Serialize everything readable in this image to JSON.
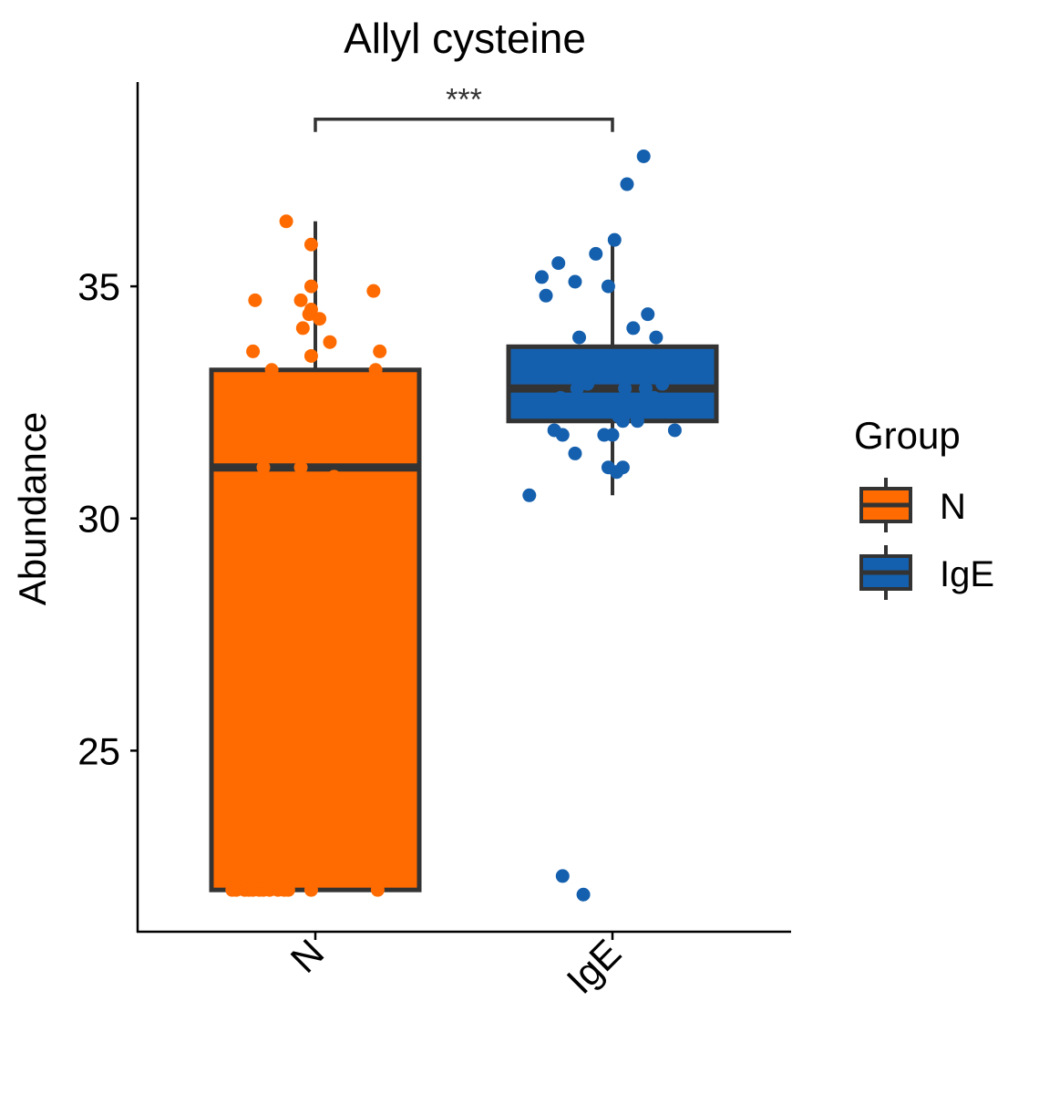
{
  "chart_data": {
    "type": "box",
    "title": "Allyl cysteine",
    "xlabel": "",
    "ylabel": "Abundance",
    "categories": [
      "N",
      "IgE"
    ],
    "ylim": [
      21.1,
      39.4
    ],
    "yticks": [
      25,
      30,
      35
    ],
    "grid": false,
    "legend": {
      "title": "Group",
      "placement": "right",
      "entries": [
        {
          "label": "N",
          "color": "#FF6B00"
        },
        {
          "label": "IgE",
          "color": "#1560AE"
        }
      ]
    },
    "significance": {
      "from": "N",
      "to": "IgE",
      "label": "***",
      "y": 38.6
    },
    "series": [
      {
        "name": "N",
        "color": "#FF6B00",
        "box": {
          "min": 22.0,
          "q1": 22.0,
          "median": 31.1,
          "q3": 33.2,
          "max": 36.4
        },
        "points": [
          {
            "x": -0.4,
            "y": 22.0
          },
          {
            "x": -0.38,
            "y": 22.0
          },
          {
            "x": -0.34,
            "y": 22.0
          },
          {
            "x": -0.32,
            "y": 22.0
          },
          {
            "x": -0.3,
            "y": 22.0
          },
          {
            "x": -0.27,
            "y": 22.0
          },
          {
            "x": -0.25,
            "y": 22.0
          },
          {
            "x": -0.22,
            "y": 22.0
          },
          {
            "x": -0.18,
            "y": 22.0
          },
          {
            "x": -0.15,
            "y": 22.0
          },
          {
            "x": -0.13,
            "y": 22.0
          },
          {
            "x": -0.02,
            "y": 22.0
          },
          {
            "x": 0.3,
            "y": 22.0
          },
          {
            "x": -0.4,
            "y": 30.7
          },
          {
            "x": -0.34,
            "y": 30.1
          },
          {
            "x": -0.36,
            "y": 31.4
          },
          {
            "x": -0.34,
            "y": 32.4
          },
          {
            "x": -0.25,
            "y": 31.1
          },
          {
            "x": -0.07,
            "y": 31.1
          },
          {
            "x": 0.09,
            "y": 30.9
          },
          {
            "x": -0.3,
            "y": 33.6
          },
          {
            "x": -0.21,
            "y": 33.2
          },
          {
            "x": -0.29,
            "y": 34.7
          },
          {
            "x": -0.07,
            "y": 34.7
          },
          {
            "x": -0.06,
            "y": 34.1
          },
          {
            "x": -0.03,
            "y": 34.4
          },
          {
            "x": -0.02,
            "y": 35.0
          },
          {
            "x": -0.02,
            "y": 34.5
          },
          {
            "x": 0.02,
            "y": 34.3
          },
          {
            "x": -0.02,
            "y": 33.5
          },
          {
            "x": 0.07,
            "y": 33.8
          },
          {
            "x": -0.02,
            "y": 35.9
          },
          {
            "x": -0.14,
            "y": 36.4
          },
          {
            "x": 0.28,
            "y": 34.9
          },
          {
            "x": 0.29,
            "y": 33.2
          },
          {
            "x": 0.31,
            "y": 33.6
          }
        ]
      },
      {
        "name": "IgE",
        "color": "#1560AE",
        "box": {
          "min": 30.5,
          "q1": 32.1,
          "median": 32.8,
          "q3": 33.7,
          "max": 36.0
        },
        "points": [
          {
            "x": -0.4,
            "y": 30.5
          },
          {
            "x": -0.24,
            "y": 22.3
          },
          {
            "x": -0.14,
            "y": 21.9
          },
          {
            "x": -0.34,
            "y": 35.2
          },
          {
            "x": -0.32,
            "y": 34.8
          },
          {
            "x": -0.26,
            "y": 35.5
          },
          {
            "x": -0.18,
            "y": 35.1
          },
          {
            "x": -0.16,
            "y": 33.9
          },
          {
            "x": -0.08,
            "y": 35.7
          },
          {
            "x": -0.02,
            "y": 35.0
          },
          {
            "x": 0.01,
            "y": 36.0
          },
          {
            "x": 0.07,
            "y": 37.2
          },
          {
            "x": 0.15,
            "y": 37.8
          },
          {
            "x": 0.1,
            "y": 34.1
          },
          {
            "x": 0.17,
            "y": 34.4
          },
          {
            "x": 0.21,
            "y": 33.9
          },
          {
            "x": -0.28,
            "y": 31.9
          },
          {
            "x": -0.24,
            "y": 31.8
          },
          {
            "x": -0.18,
            "y": 31.4
          },
          {
            "x": -0.04,
            "y": 31.8
          },
          {
            "x": 0.0,
            "y": 31.8
          },
          {
            "x": -0.02,
            "y": 31.1
          },
          {
            "x": 0.02,
            "y": 31.0
          },
          {
            "x": 0.05,
            "y": 31.1
          },
          {
            "x": 0.37,
            "y": 32.5
          },
          {
            "x": 0.3,
            "y": 31.9
          },
          {
            "x": -0.25,
            "y": 32.6
          },
          {
            "x": -0.17,
            "y": 32.8
          },
          {
            "x": -0.12,
            "y": 32.9
          },
          {
            "x": -0.05,
            "y": 32.4
          },
          {
            "x": 0.03,
            "y": 32.2
          },
          {
            "x": 0.06,
            "y": 32.8
          },
          {
            "x": 0.11,
            "y": 32.3
          },
          {
            "x": 0.16,
            "y": 32.8
          },
          {
            "x": 0.2,
            "y": 32.6
          },
          {
            "x": 0.24,
            "y": 32.9
          },
          {
            "x": 0.12,
            "y": 32.1
          },
          {
            "x": 0.05,
            "y": 32.1
          }
        ]
      }
    ]
  }
}
